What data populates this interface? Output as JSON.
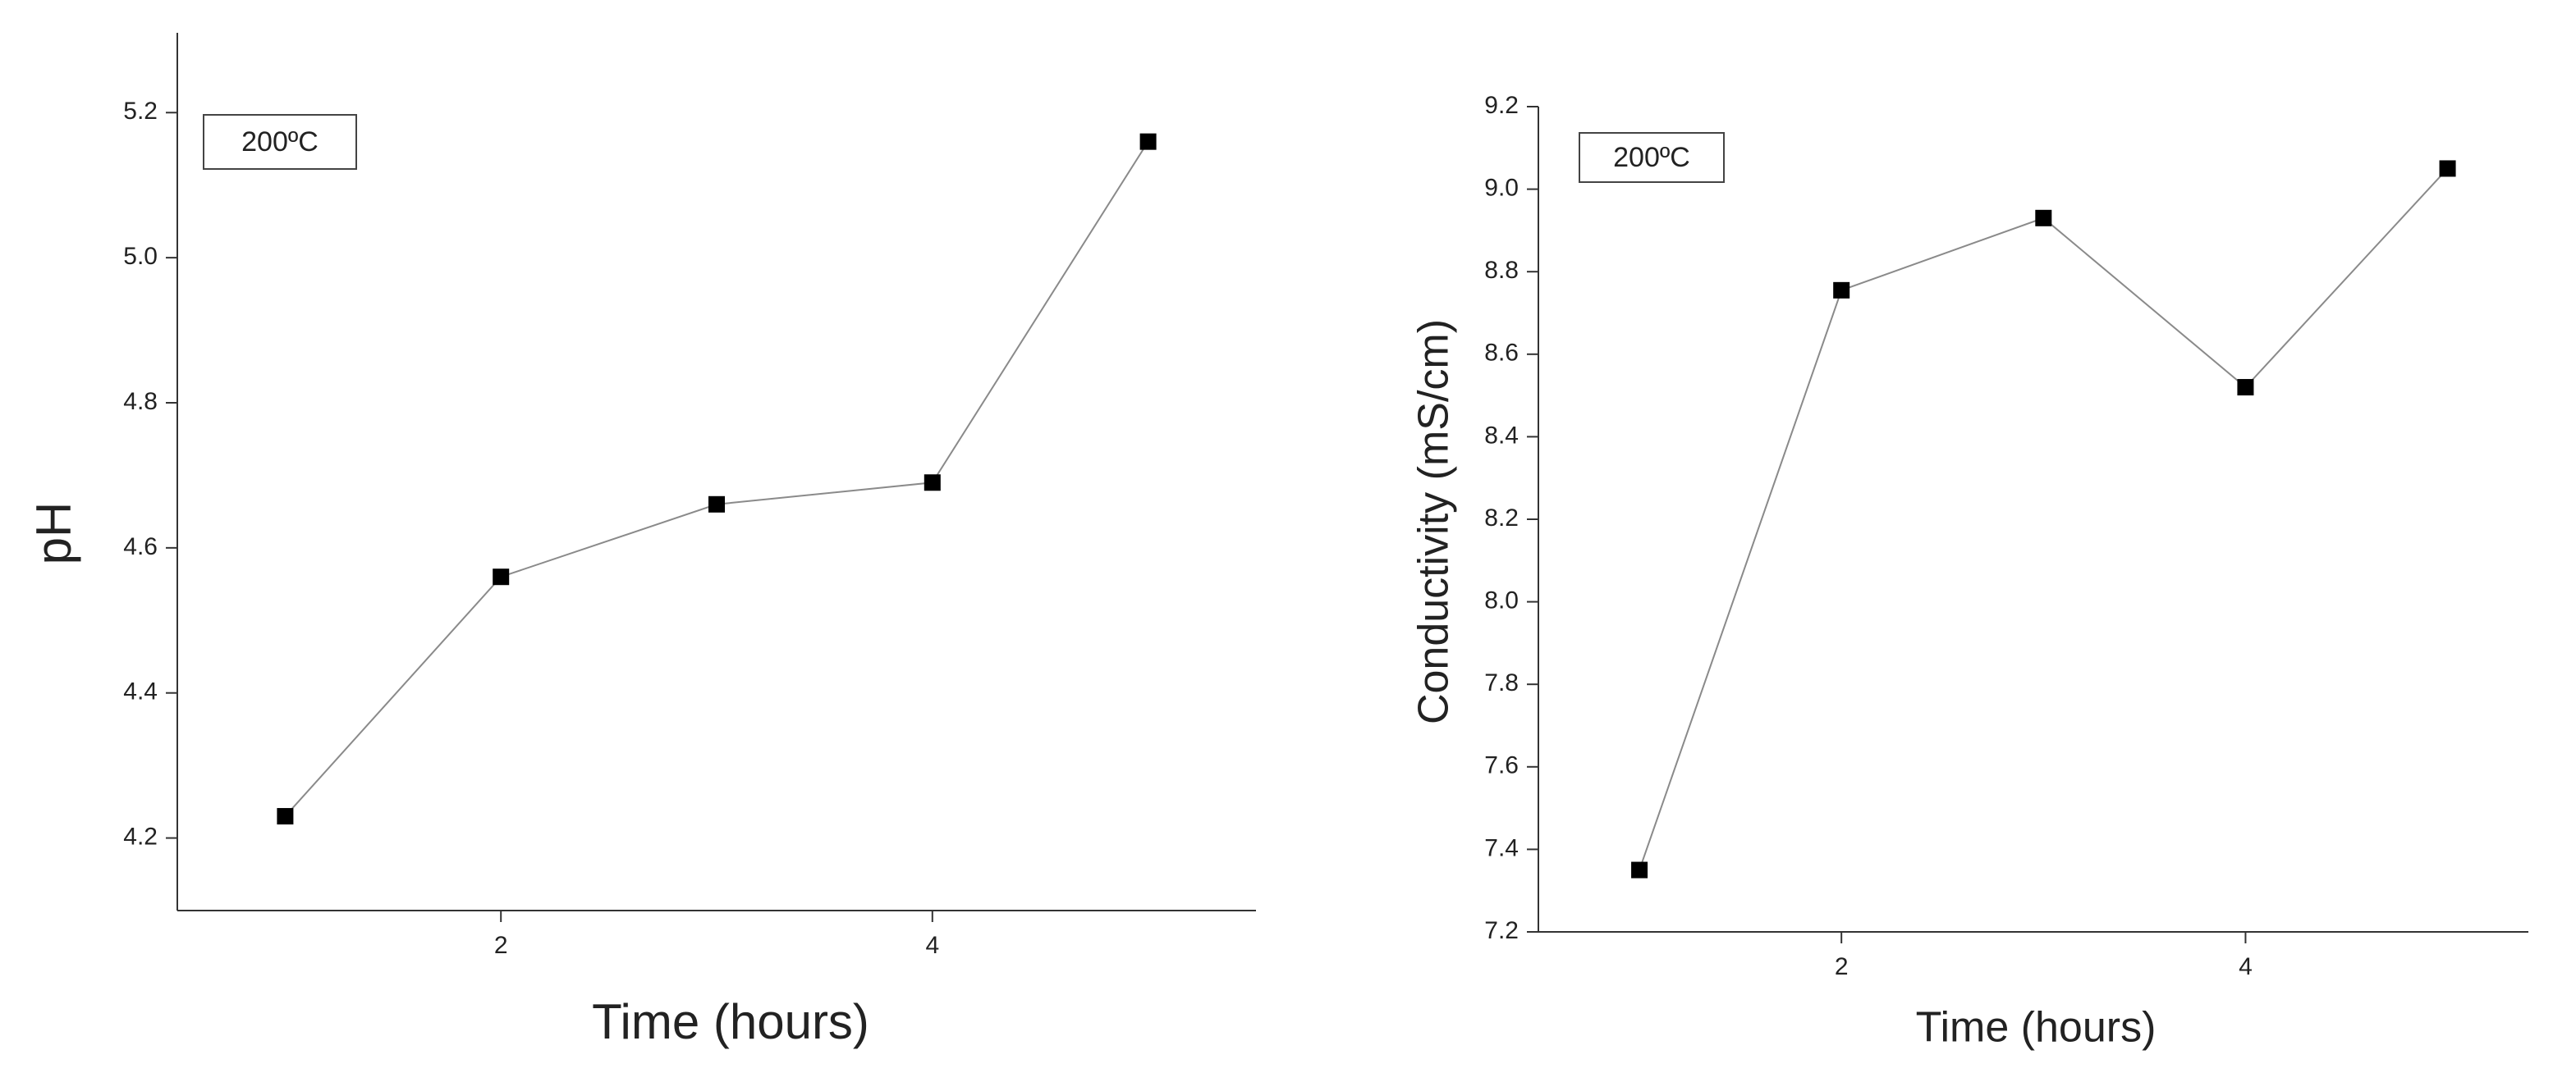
{
  "chart_data": [
    {
      "type": "line",
      "x_label": "Time (hours)",
      "y_label": "pH",
      "annotation": "200ºC",
      "x": [
        1,
        2,
        3,
        4,
        5
      ],
      "series": [
        {
          "name": "pH",
          "color": "#000000",
          "values": [
            4.23,
            4.56,
            4.66,
            4.69,
            5.16
          ]
        }
      ],
      "xlim": [
        0.5,
        5.5
      ],
      "xticks": [
        2,
        4
      ],
      "ylim": [
        4.1,
        5.31
      ],
      "yticks": [
        {
          "value": 4.2,
          "label": "4.2"
        },
        {
          "value": 4.4,
          "label": "4.4"
        },
        {
          "value": 4.6,
          "label": "4.6"
        },
        {
          "value": 4.8,
          "label": "4.8"
        },
        {
          "value": 5.0,
          "label": "5.0"
        },
        {
          "value": 5.2,
          "label": "5.2"
        }
      ]
    },
    {
      "type": "line",
      "x_label": "Time (hours)",
      "y_label": "Conductivity (mS/cm)",
      "annotation": "200ºC",
      "x": [
        1,
        2,
        3,
        4,
        5
      ],
      "series": [
        {
          "name": "Conductivity",
          "color": "#000000",
          "values": [
            7.35,
            8.755,
            8.93,
            8.52,
            9.05
          ]
        }
      ],
      "xlim": [
        0.5,
        5.4
      ],
      "xticks": [
        2,
        4
      ],
      "ylim": [
        7.2,
        9.2
      ],
      "yticks": [
        {
          "value": 7.2,
          "label": "7.2"
        },
        {
          "value": 7.4,
          "label": "7.4"
        },
        {
          "value": 7.6,
          "label": "7.6"
        },
        {
          "value": 7.8,
          "label": "7.8"
        },
        {
          "value": 8.0,
          "label": "8.0"
        },
        {
          "value": 8.2,
          "label": "8.2"
        },
        {
          "value": 8.4,
          "label": "8.4"
        },
        {
          "value": 8.6,
          "label": "8.6"
        },
        {
          "value": 8.8,
          "label": "8.8"
        },
        {
          "value": 9.0,
          "label": "9.0"
        },
        {
          "value": 9.2,
          "label": "9.2"
        }
      ]
    }
  ]
}
